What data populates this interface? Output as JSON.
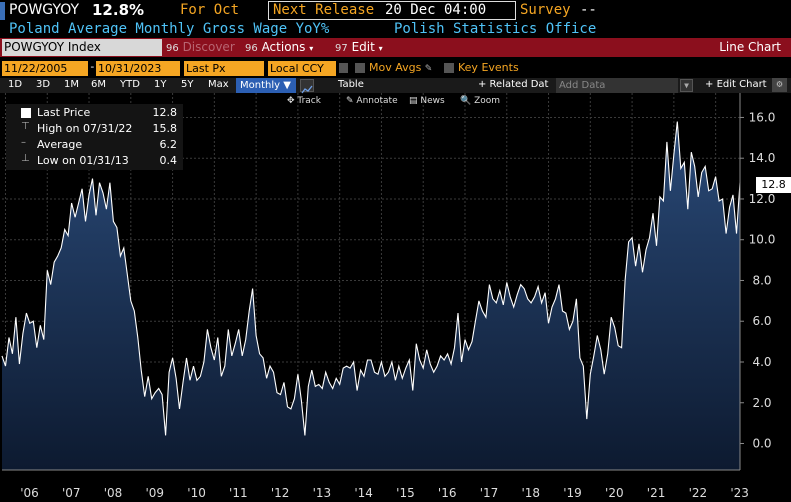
{
  "header": {
    "ticker": "POWGYOY",
    "value": "12.8%",
    "for_label": "For Oct",
    "next_release_label": "Next Release",
    "next_release_value": "20 Dec 04:00",
    "survey_label": "Survey",
    "survey_value": "--",
    "description": "Poland Average Monthly Gross Wage YoY%",
    "source": "Polish Statistics Office"
  },
  "toolbar": {
    "index_field": "POWGYOY Index",
    "discover_num": "96",
    "discover_label": "Discover",
    "actions_num": "96",
    "actions_label": "Actions",
    "edit_num": "97",
    "edit_label": "Edit",
    "line_chart_label": "Line Chart"
  },
  "range": {
    "start_date": "11/22/2005",
    "end_date": "10/31/2023",
    "price_field": "Last Px",
    "currency_field": "Local CCY",
    "mov_avgs_label": "Mov Avgs",
    "key_events_label": "Key Events"
  },
  "periods": {
    "items": [
      "1D",
      "3D",
      "1M",
      "6M",
      "YTD",
      "1Y",
      "5Y",
      "Max"
    ],
    "frequency": "Monthly",
    "table_label": "Table",
    "related_label": "+ Related Dat",
    "add_data_placeholder": "Add Data",
    "edit_chart_label": "Edit Chart"
  },
  "chart_tools": {
    "track": "Track",
    "annotate": "Annotate",
    "news": "News",
    "zoom": "Zoom"
  },
  "legend": {
    "last_price_label": "Last Price",
    "last_price_value": "12.8",
    "high_label": "High on 07/31/22",
    "high_value": "15.8",
    "average_label": "Average",
    "average_value": "6.2",
    "low_label": "Low on 01/31/13",
    "low_value": "0.4"
  },
  "last_value_box": "12.8",
  "colors": {
    "accent_orange": "#f5a623",
    "header_cyan": "#4fc3f7",
    "toolbar_red": "#8b0f1d",
    "monthly_blue": "#2c5fb3",
    "area_fill_top": "#2a4a78",
    "area_fill_bottom": "#0d1a30",
    "line_color": "#ffffff"
  },
  "chart_data": {
    "type": "area",
    "xlabel": "",
    "ylabel": "",
    "ylim": [
      -1.3,
      17.2
    ],
    "yticks": [
      "0.0",
      "2.0",
      "4.0",
      "6.0",
      "8.0",
      "10.0",
      "12.0",
      "14.0",
      "16.0"
    ],
    "xticks": [
      "'06",
      "'07",
      "'08",
      "'09",
      "'10",
      "'11",
      "'12",
      "'13",
      "'14",
      "'15",
      "'16",
      "'17",
      "'18",
      "'19",
      "'20",
      "'21",
      "'22",
      "'23"
    ],
    "series": [
      {
        "x_start": "2005-12",
        "values": [
          4.3,
          3.8,
          5.2,
          4.4,
          6.2,
          3.9,
          5.4,
          6.4,
          5.9,
          6.0,
          4.7,
          5.8,
          5.1,
          8.5,
          7.8,
          8.9,
          9.2,
          9.6,
          10.5,
          10.2,
          11.8,
          11.1,
          11.8,
          12.5,
          10.9,
          12.2,
          13.0,
          11.2,
          12.8,
          12.3,
          11.5,
          12.8,
          10.9,
          10.6,
          9.2,
          9.6,
          8.3,
          7.0,
          6.5,
          5.2,
          3.6,
          2.3,
          3.3,
          2.2,
          2.5,
          2.7,
          2.4,
          0.4,
          3.5,
          4.2,
          3.2,
          1.7,
          3.0,
          4.2,
          3.1,
          3.8,
          3.1,
          3.3,
          4.0,
          5.6,
          4.7,
          4.1,
          5.2,
          3.3,
          3.8,
          5.6,
          4.3,
          4.9,
          5.6,
          4.3,
          5.1,
          6.5,
          7.6,
          5.3,
          4.4,
          4.2,
          3.2,
          3.8,
          3.5,
          2.5,
          2.4,
          3.0,
          1.8,
          1.7,
          2.2,
          3.4,
          2.1,
          0.4,
          2.8,
          3.6,
          2.8,
          2.9,
          2.7,
          3.5,
          3.0,
          2.7,
          3.2,
          2.9,
          3.7,
          3.8,
          3.7,
          4.0,
          2.6,
          3.6,
          3.3,
          4.1,
          4.1,
          3.5,
          3.4,
          4.0,
          3.3,
          3.5,
          4.0,
          3.1,
          3.8,
          3.2,
          3.7,
          4.1,
          2.6,
          4.9,
          4.1,
          3.7,
          4.6,
          3.9,
          3.5,
          3.8,
          4.3,
          4.1,
          4.4,
          3.9,
          4.7,
          6.4,
          4.0,
          5.1,
          4.6,
          5.0,
          6.0,
          7.0,
          6.5,
          6.2,
          7.8,
          7.1,
          6.9,
          7.5,
          6.8,
          7.9,
          7.2,
          6.7,
          7.3,
          7.8,
          7.6,
          7.1,
          6.9,
          7.2,
          7.7,
          6.9,
          7.4,
          5.9,
          6.7,
          7.1,
          7.8,
          6.5,
          6.4,
          5.6,
          6.0,
          7.1,
          4.2,
          3.8,
          1.2,
          3.4,
          4.3,
          5.3,
          4.6,
          3.4,
          4.4,
          6.2,
          5.7,
          4.8,
          4.7,
          8.0,
          9.9,
          10.1,
          8.7,
          9.8,
          8.4,
          9.5,
          10.1,
          11.3,
          9.7,
          12.1,
          11.9,
          14.8,
          12.4,
          14.2,
          15.8,
          13.5,
          13.8,
          11.5,
          14.3,
          13.6,
          12.1,
          13.3,
          13.6,
          12.4,
          12.5,
          13.1,
          11.9,
          12.0,
          10.3,
          11.6,
          12.2,
          10.3,
          12.8
        ]
      }
    ]
  }
}
